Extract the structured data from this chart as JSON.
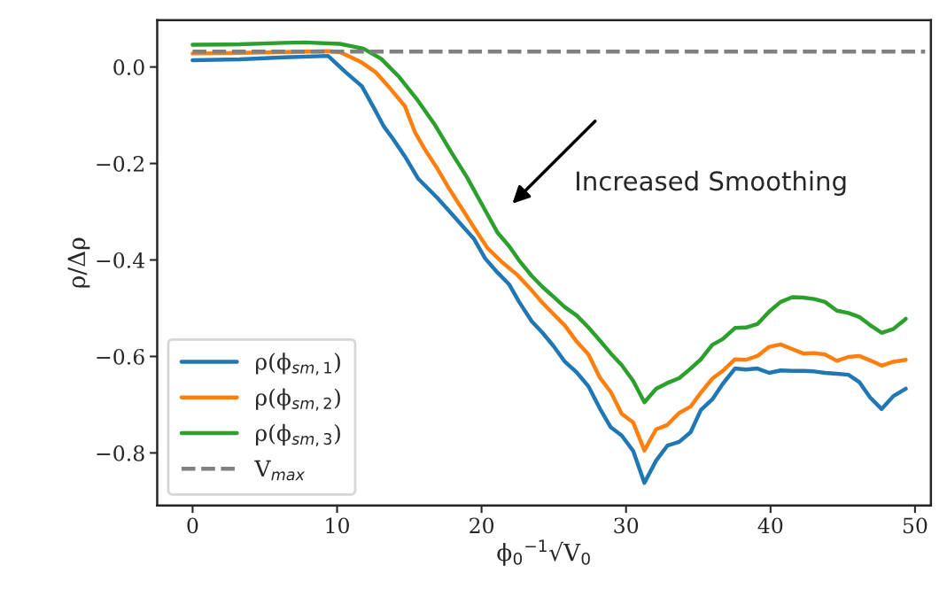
{
  "chart_data": {
    "type": "line",
    "xlabel": "ϕ$_{0}$$^{−1}$√V$_{0}$",
    "ylabel": "ρ/Δρ",
    "xlim": [
      -2.45,
      51.1
    ],
    "ylim": [
      -0.909,
      0.097
    ],
    "xticks": [
      0,
      10,
      20,
      30,
      40,
      50
    ],
    "yticks": [
      {
        "value": -0.8,
        "label": "−0.8"
      },
      {
        "value": -0.6,
        "label": "−0.6"
      },
      {
        "value": -0.4,
        "label": "−0.4"
      },
      {
        "value": -0.2,
        "label": "−0.2"
      },
      {
        "value": 0.0,
        "label": "0.0"
      }
    ],
    "grid": false,
    "legend": "bottom left",
    "marker": "none",
    "annotations": [
      "Increased Smoothing"
    ],
    "series": [
      {
        "name": "ρ(ϕ$_{sm,1}$)",
        "color": "#1f77b4",
        "line_style": "solid",
        "x": [
          0,
          3.25,
          6.31,
          9.38,
          10.6,
          11.72,
          12.64,
          13.25,
          13.87,
          14.69,
          15.6,
          16.93,
          17.95,
          19.49,
          20.25,
          21.1,
          21.92,
          22.6,
          23.47,
          24.22,
          24.97,
          25.77,
          26.58,
          27.4,
          28.19,
          28.95,
          29.7,
          30.5,
          31.27,
          32.08,
          32.86,
          33.68,
          34.47,
          35.18,
          35.97,
          36.69,
          37.54,
          38.3,
          39.09,
          39.91,
          40.7,
          41.52,
          42.27,
          43.02,
          43.77,
          44.59,
          45.39,
          46.14,
          46.89,
          47.69,
          48.51,
          49.36
        ],
        "values": [
          0.014,
          0.016,
          0.02,
          0.023,
          -0.011,
          -0.04,
          -0.09,
          -0.124,
          -0.149,
          -0.185,
          -0.231,
          -0.271,
          -0.305,
          -0.357,
          -0.397,
          -0.426,
          -0.451,
          -0.487,
          -0.527,
          -0.551,
          -0.578,
          -0.611,
          -0.633,
          -0.662,
          -0.708,
          -0.747,
          -0.764,
          -0.796,
          -0.862,
          -0.816,
          -0.785,
          -0.777,
          -0.757,
          -0.711,
          -0.689,
          -0.657,
          -0.625,
          -0.627,
          -0.625,
          -0.634,
          -0.629,
          -0.63,
          -0.63,
          -0.631,
          -0.634,
          -0.636,
          -0.638,
          -0.653,
          -0.685,
          -0.709,
          -0.682,
          -0.667
        ]
      },
      {
        "name": "ρ(ϕ$_{sm,2}$)",
        "color": "#ff7f0e",
        "line_style": "solid",
        "x": [
          0,
          3.25,
          6.31,
          9.38,
          10.19,
          11.62,
          12.64,
          13.66,
          14.69,
          15.4,
          16.12,
          16.93,
          17.75,
          18.67,
          19.59,
          20.4,
          21.43,
          22.44,
          23.47,
          24.22,
          24.97,
          25.77,
          26.58,
          27.4,
          28.19,
          28.95,
          29.7,
          30.5,
          31.27,
          32.08,
          32.86,
          33.68,
          34.47,
          35.18,
          35.97,
          36.69,
          37.54,
          38.3,
          39.09,
          39.91,
          40.7,
          41.52,
          42.27,
          43.02,
          43.77,
          44.59,
          45.39,
          46.14,
          46.89,
          47.69,
          48.51,
          49.36
        ],
        "values": [
          0.028,
          0.029,
          0.031,
          0.033,
          0.031,
          0.011,
          -0.01,
          -0.044,
          -0.081,
          -0.136,
          -0.173,
          -0.21,
          -0.252,
          -0.295,
          -0.338,
          -0.375,
          -0.405,
          -0.43,
          -0.463,
          -0.489,
          -0.512,
          -0.536,
          -0.569,
          -0.596,
          -0.644,
          -0.674,
          -0.719,
          -0.737,
          -0.795,
          -0.751,
          -0.742,
          -0.717,
          -0.704,
          -0.675,
          -0.646,
          -0.63,
          -0.606,
          -0.607,
          -0.599,
          -0.58,
          -0.575,
          -0.585,
          -0.594,
          -0.593,
          -0.596,
          -0.609,
          -0.601,
          -0.599,
          -0.608,
          -0.619,
          -0.611,
          -0.607
        ]
      },
      {
        "name": "ρ(ϕ$_{sm,3}$)",
        "color": "#2ca02c",
        "line_style": "solid",
        "x": [
          0,
          3.25,
          6.31,
          7.74,
          10.19,
          11.82,
          13.05,
          14.28,
          15.5,
          16.73,
          17.95,
          18.98,
          19.99,
          21.1,
          21.92,
          22.6,
          23.47,
          24.22,
          24.97,
          25.77,
          26.58,
          27.4,
          28.19,
          28.95,
          29.7,
          30.5,
          31.27,
          32.08,
          32.86,
          33.68,
          34.47,
          35.18,
          35.97,
          36.69,
          37.54,
          38.3,
          39.09,
          39.91,
          40.7,
          41.52,
          42.27,
          43.02,
          43.77,
          44.59,
          45.39,
          46.14,
          46.89,
          47.69,
          48.51,
          49.36
        ],
        "values": [
          0.046,
          0.047,
          0.05,
          0.051,
          0.048,
          0.038,
          0.017,
          -0.02,
          -0.066,
          -0.118,
          -0.179,
          -0.228,
          -0.283,
          -0.343,
          -0.372,
          -0.401,
          -0.433,
          -0.456,
          -0.476,
          -0.498,
          -0.515,
          -0.54,
          -0.567,
          -0.594,
          -0.618,
          -0.651,
          -0.695,
          -0.667,
          -0.655,
          -0.645,
          -0.625,
          -0.606,
          -0.576,
          -0.564,
          -0.541,
          -0.54,
          -0.533,
          -0.507,
          -0.487,
          -0.477,
          -0.478,
          -0.481,
          -0.487,
          -0.505,
          -0.51,
          -0.518,
          -0.535,
          -0.551,
          -0.543,
          -0.522
        ]
      },
      {
        "name": "V$_{max}$",
        "color": "#808080",
        "line_style": "dashed",
        "x": [
          0,
          50.7
        ],
        "values": [
          0.032,
          0.032
        ]
      }
    ]
  }
}
